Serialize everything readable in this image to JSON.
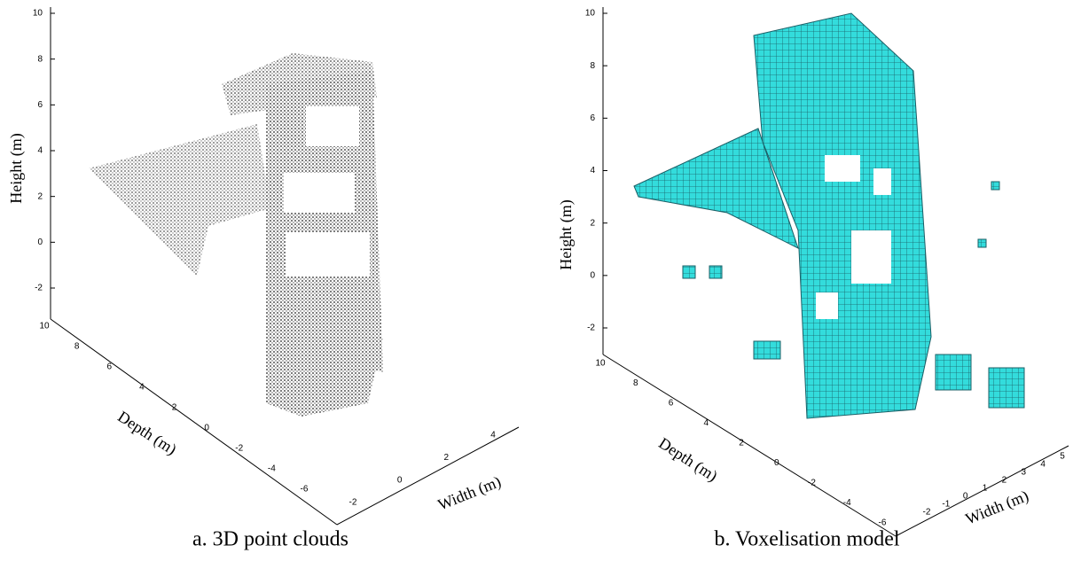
{
  "panels": [
    {
      "z_label": "Height (m)",
      "z_ticks": [
        -2,
        0,
        2,
        4,
        6,
        8,
        10
      ],
      "y_label": "Depth (m)",
      "y_ticks": [
        10,
        8,
        6,
        4,
        2,
        0,
        -2,
        -4,
        -6
      ],
      "x_label": "Width (m)",
      "x_ticks": [
        -2,
        0,
        2,
        4
      ],
      "caption": "a. 3D point clouds"
    },
    {
      "z_label": "Height (m)",
      "z_ticks": [
        -2,
        0,
        2,
        4,
        6,
        8,
        10
      ],
      "y_label": "Depth (m)",
      "y_ticks": [
        10,
        8,
        6,
        4,
        2,
        0,
        -2,
        -4,
        -6
      ],
      "x_label": "Width (m)",
      "x_ticks": [
        -2,
        -1,
        0,
        1,
        2,
        3,
        4,
        5
      ],
      "caption": "b. Voxelisation model"
    }
  ]
}
